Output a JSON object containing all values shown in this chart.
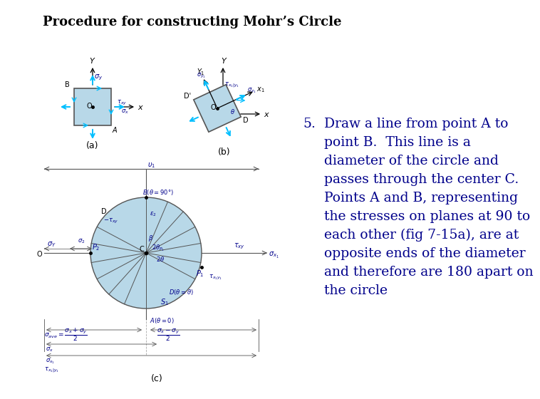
{
  "title": "Procedure for constructing Mohr’s Circle",
  "title_fontsize": 13,
  "title_fontweight": "bold",
  "title_color": "black",
  "step_number": "5.",
  "step_text": "Draw a line from point A to point B. This line is a diameter of the circle and passes through the center C. Points A and B, representing the stresses on planes at 90 to each other (fig 7-15a), are at opposite ends of the diameter and therefore are 180 apart on the circle",
  "text_color": "#00008B",
  "text_fontsize": 13.5,
  "bg_color": "#ffffff",
  "box_fill": "#b8d8e8",
  "box_edge": "#555555",
  "arrow_color": "#00BFFF",
  "label_color": "#00008B",
  "circle_fill": "#b8d8e8",
  "circle_edge": "#555555",
  "line_color": "#333333",
  "label_fontsize": 7,
  "sub_label_fontsize": 6,
  "fig_label_fontsize": 9,
  "diag_line_color": "#555555"
}
